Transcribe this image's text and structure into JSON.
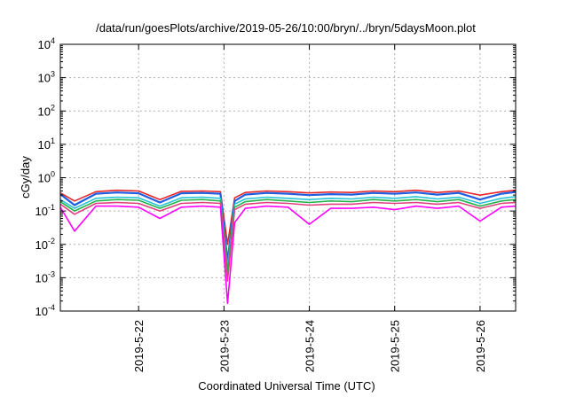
{
  "chart_data": {
    "type": "line",
    "title": "/data/run/goesPlots/archive/2019-05-26/10:00/bryn/../bryn/5daysMoon.plot",
    "xlabel": "Coordinated Universal Time (UTC)",
    "ylabel": "cGy/day",
    "yscale": "log",
    "ylim": [
      0.0001,
      10000
    ],
    "xlim": [
      "2019-05-21T02:00",
      "2019-05-26T10:00"
    ],
    "grid": true,
    "legend": "none",
    "y_ticks": [
      {
        "base": "10",
        "exp": "-4"
      },
      {
        "base": "10",
        "exp": "-3"
      },
      {
        "base": "10",
        "exp": "-2"
      },
      {
        "base": "10",
        "exp": "-1"
      },
      {
        "base": "10",
        "exp": "0"
      },
      {
        "base": "10",
        "exp": "1"
      },
      {
        "base": "10",
        "exp": "2"
      },
      {
        "base": "10",
        "exp": "3"
      },
      {
        "base": "10",
        "exp": "4"
      }
    ],
    "x_ticks": [
      "2019-5-22",
      "2019-5-23",
      "2019-5-24",
      "2019-5-25",
      "2019-5-26"
    ],
    "x_tick_dates": [
      "2019-05-22",
      "2019-05-23",
      "2019-05-24",
      "2019-05-25",
      "2019-05-26"
    ],
    "colors": {
      "red": "#e8272a",
      "blue": "#1f5fe0",
      "cyan": "#27c4d6",
      "green": "#22b34a",
      "pink": "#e0407e",
      "magenta": "#ff00ff"
    },
    "series": [
      {
        "color_key": "red",
        "x": [
          "2019-05-21T02:00",
          "2019-05-21T06:00",
          "2019-05-21T12:00",
          "2019-05-21T18:00",
          "2019-05-22T00:00",
          "2019-05-22T06:00",
          "2019-05-22T12:00",
          "2019-05-22T18:00",
          "2019-05-22T23:00",
          "2019-05-23T01:00",
          "2019-05-23T03:00",
          "2019-05-23T06:00",
          "2019-05-23T12:00",
          "2019-05-23T18:00",
          "2019-05-24T00:00",
          "2019-05-24T06:00",
          "2019-05-24T12:00",
          "2019-05-24T18:00",
          "2019-05-25T00:00",
          "2019-05-25T06:00",
          "2019-05-25T12:00",
          "2019-05-25T18:00",
          "2019-05-26T00:00",
          "2019-05-26T06:00",
          "2019-05-26T10:00"
        ],
        "y": [
          0.35,
          0.2,
          0.38,
          0.42,
          0.4,
          0.22,
          0.39,
          0.4,
          0.38,
          0.01,
          0.25,
          0.36,
          0.4,
          0.38,
          0.35,
          0.37,
          0.36,
          0.4,
          0.38,
          0.42,
          0.36,
          0.4,
          0.3,
          0.38,
          0.42
        ]
      },
      {
        "color_key": "blue",
        "x": [
          "2019-05-21T02:00",
          "2019-05-21T06:00",
          "2019-05-21T12:00",
          "2019-05-21T18:00",
          "2019-05-22T00:00",
          "2019-05-22T06:00",
          "2019-05-22T12:00",
          "2019-05-22T18:00",
          "2019-05-22T23:00",
          "2019-05-23T01:00",
          "2019-05-23T03:00",
          "2019-05-23T06:00",
          "2019-05-23T12:00",
          "2019-05-23T18:00",
          "2019-05-24T00:00",
          "2019-05-24T06:00",
          "2019-05-24T12:00",
          "2019-05-24T18:00",
          "2019-05-25T00:00",
          "2019-05-25T06:00",
          "2019-05-25T12:00",
          "2019-05-25T18:00",
          "2019-05-26T00:00",
          "2019-05-26T06:00",
          "2019-05-26T10:00"
        ],
        "y": [
          0.32,
          0.15,
          0.33,
          0.36,
          0.34,
          0.18,
          0.34,
          0.35,
          0.33,
          0.003,
          0.2,
          0.31,
          0.35,
          0.33,
          0.3,
          0.32,
          0.31,
          0.35,
          0.33,
          0.36,
          0.31,
          0.35,
          0.22,
          0.33,
          0.37
        ]
      },
      {
        "color_key": "cyan",
        "x": [
          "2019-05-21T02:00",
          "2019-05-21T06:00",
          "2019-05-21T12:00",
          "2019-05-21T18:00",
          "2019-05-22T00:00",
          "2019-05-22T06:00",
          "2019-05-22T12:00",
          "2019-05-22T18:00",
          "2019-05-22T23:00",
          "2019-05-23T01:00",
          "2019-05-23T03:00",
          "2019-05-23T06:00",
          "2019-05-23T12:00",
          "2019-05-23T18:00",
          "2019-05-24T00:00",
          "2019-05-24T06:00",
          "2019-05-24T12:00",
          "2019-05-24T18:00",
          "2019-05-25T00:00",
          "2019-05-25T06:00",
          "2019-05-25T12:00",
          "2019-05-25T18:00",
          "2019-05-26T00:00",
          "2019-05-26T06:00",
          "2019-05-26T10:00"
        ],
        "y": [
          0.22,
          0.12,
          0.24,
          0.26,
          0.25,
          0.14,
          0.25,
          0.26,
          0.24,
          0.002,
          0.16,
          0.23,
          0.26,
          0.24,
          0.22,
          0.24,
          0.23,
          0.26,
          0.24,
          0.27,
          0.23,
          0.26,
          0.17,
          0.24,
          0.27
        ]
      },
      {
        "color_key": "green",
        "x": [
          "2019-05-21T02:00",
          "2019-05-21T06:00",
          "2019-05-21T12:00",
          "2019-05-21T18:00",
          "2019-05-22T00:00",
          "2019-05-22T06:00",
          "2019-05-22T12:00",
          "2019-05-22T18:00",
          "2019-05-22T23:00",
          "2019-05-23T01:00",
          "2019-05-23T03:00",
          "2019-05-23T06:00",
          "2019-05-23T12:00",
          "2019-05-23T18:00",
          "2019-05-24T00:00",
          "2019-05-24T06:00",
          "2019-05-24T12:00",
          "2019-05-24T18:00",
          "2019-05-25T00:00",
          "2019-05-25T06:00",
          "2019-05-25T12:00",
          "2019-05-25T18:00",
          "2019-05-26T00:00",
          "2019-05-26T06:00",
          "2019-05-26T10:00"
        ],
        "y": [
          0.19,
          0.1,
          0.2,
          0.22,
          0.21,
          0.12,
          0.21,
          0.22,
          0.2,
          0.0015,
          0.13,
          0.19,
          0.22,
          0.2,
          0.18,
          0.2,
          0.19,
          0.22,
          0.2,
          0.22,
          0.19,
          0.22,
          0.14,
          0.2,
          0.22
        ]
      },
      {
        "color_key": "pink",
        "x": [
          "2019-05-21T02:00",
          "2019-05-21T06:00",
          "2019-05-21T12:00",
          "2019-05-21T18:00",
          "2019-05-22T00:00",
          "2019-05-22T06:00",
          "2019-05-22T12:00",
          "2019-05-22T18:00",
          "2019-05-22T23:00",
          "2019-05-23T01:00",
          "2019-05-23T03:00",
          "2019-05-23T06:00",
          "2019-05-23T12:00",
          "2019-05-23T18:00",
          "2019-05-24T00:00",
          "2019-05-24T06:00",
          "2019-05-24T12:00",
          "2019-05-24T18:00",
          "2019-05-25T00:00",
          "2019-05-25T06:00",
          "2019-05-25T12:00",
          "2019-05-25T18:00",
          "2019-05-26T00:00",
          "2019-05-26T06:00",
          "2019-05-26T10:00"
        ],
        "y": [
          0.16,
          0.08,
          0.17,
          0.18,
          0.17,
          0.1,
          0.17,
          0.18,
          0.17,
          0.0008,
          0.11,
          0.16,
          0.18,
          0.17,
          0.15,
          0.16,
          0.16,
          0.18,
          0.17,
          0.18,
          0.16,
          0.18,
          0.12,
          0.17,
          0.18
        ]
      },
      {
        "color_key": "magenta",
        "x": [
          "2019-05-21T02:00",
          "2019-05-21T06:00",
          "2019-05-21T12:00",
          "2019-05-21T18:00",
          "2019-05-22T00:00",
          "2019-05-22T06:00",
          "2019-05-22T12:00",
          "2019-05-22T18:00",
          "2019-05-22T23:00",
          "2019-05-23T01:00",
          "2019-05-23T03:00",
          "2019-05-23T06:00",
          "2019-05-23T12:00",
          "2019-05-23T18:00",
          "2019-05-24T00:00",
          "2019-05-24T06:00",
          "2019-05-24T12:00",
          "2019-05-24T18:00",
          "2019-05-25T00:00",
          "2019-05-25T06:00",
          "2019-05-25T12:00",
          "2019-05-25T18:00",
          "2019-05-26T00:00",
          "2019-05-26T06:00",
          "2019-05-26T10:00"
        ],
        "y": [
          0.13,
          0.025,
          0.14,
          0.14,
          0.13,
          0.06,
          0.13,
          0.14,
          0.13,
          0.00017,
          0.045,
          0.12,
          0.14,
          0.13,
          0.04,
          0.12,
          0.12,
          0.13,
          0.11,
          0.14,
          0.12,
          0.14,
          0.05,
          0.13,
          0.14
        ]
      }
    ]
  }
}
